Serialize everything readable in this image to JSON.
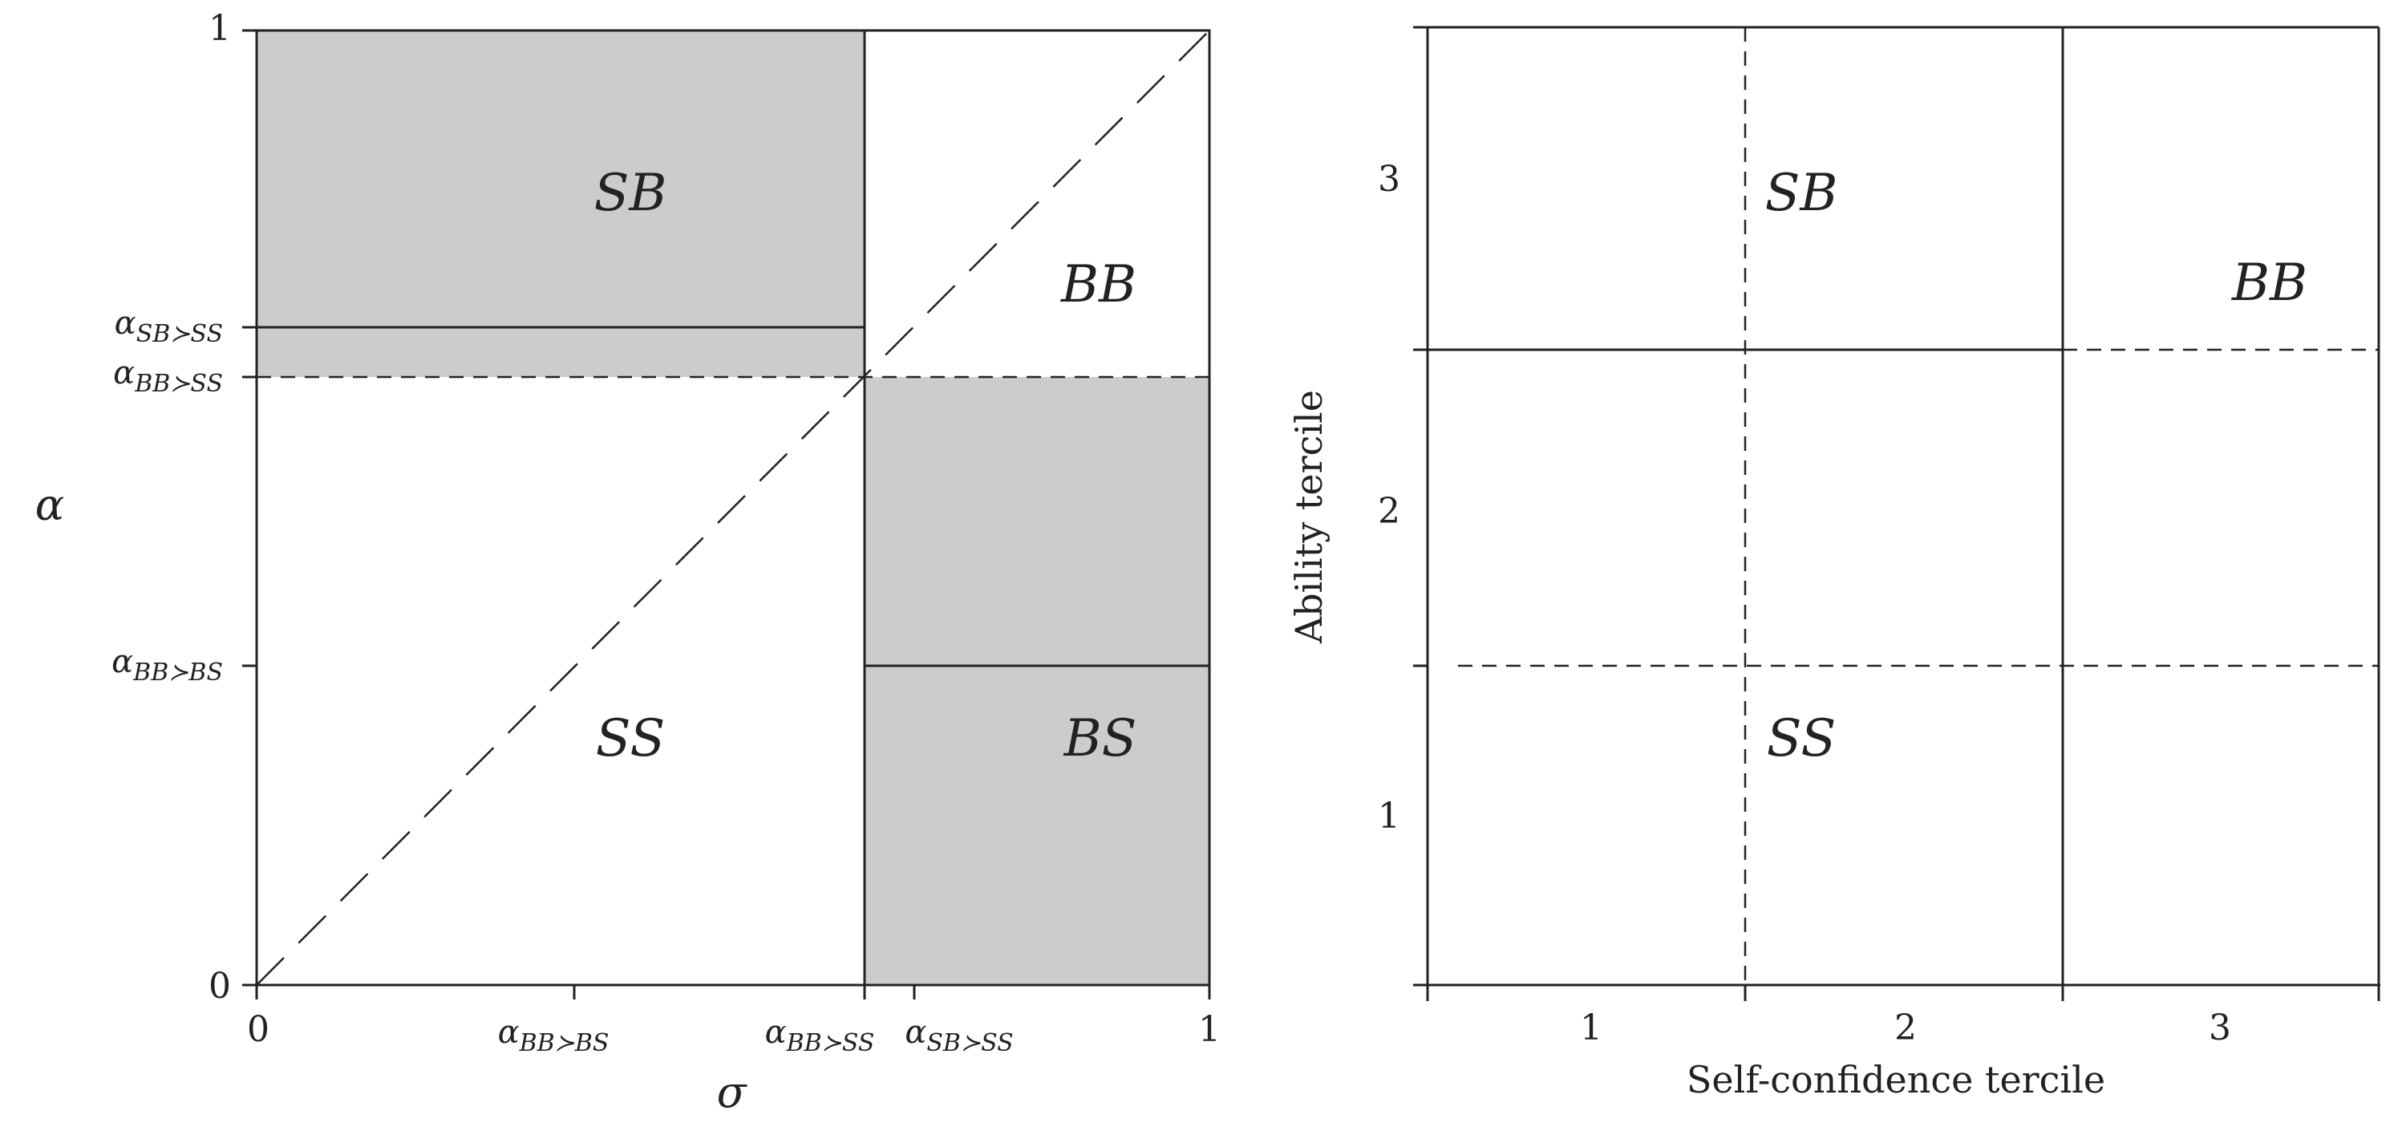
{
  "colors": {
    "shade": "#cccccc",
    "line": "#222222",
    "background": "#ffffff"
  },
  "left_panel": {
    "axis_x_label": "σ",
    "axis_y_label": "α",
    "y_ticks": {
      "zero": "0",
      "one": "1",
      "sb_ss": {
        "base": "α",
        "sub": "SB≻SS"
      },
      "bb_ss": {
        "base": "α",
        "sub": "BB≻SS"
      },
      "bb_bs": {
        "base": "α",
        "sub": "BB≻BS"
      }
    },
    "x_ticks": {
      "zero": "0",
      "one": "1",
      "bb_bs": {
        "base": "α",
        "sub": "BB≻BS"
      },
      "bb_ss": {
        "base": "α",
        "sub": "BB≻SS"
      },
      "sb_ss": {
        "base": "α",
        "sub": "SB≻SS"
      }
    },
    "regions": {
      "sb": "SB",
      "bb": "BB",
      "ss": "SS",
      "bs": "BS"
    }
  },
  "right_panel": {
    "x_axis_label": "Self-confidence tercile",
    "y_axis_label": "Ability tercile",
    "x_ticks": [
      "1",
      "2",
      "3"
    ],
    "y_ticks": [
      "1",
      "2",
      "3"
    ],
    "regions": {
      "sb": "SB",
      "bb": "BB",
      "ss": "SS"
    }
  }
}
